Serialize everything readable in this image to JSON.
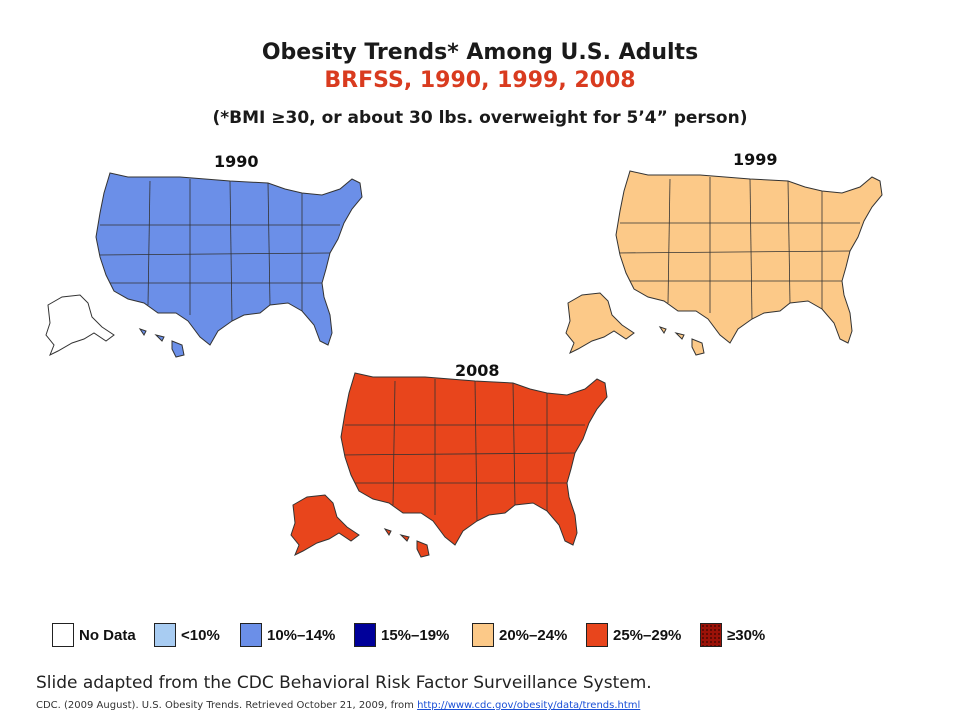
{
  "title": "Obesity Trends* Among U.S. Adults",
  "subtitle": "BRFSS, 1990, 1999, 2008",
  "note": "(*BMI ≥30, or about 30 lbs. overweight for 5’4” person)",
  "colors": {
    "nodata": "#ffffff",
    "lt10": "#a8ccf2",
    "p10_14": "#6b8fe8",
    "p15_19": "#00009a",
    "p20_24": "#fcc988",
    "p25_29": "#e8451c",
    "ge30": "#9b1208",
    "border": "#333333"
  },
  "maps": [
    {
      "year": "1990",
      "dominant": "p10_14"
    },
    {
      "year": "1999",
      "dominant": "p20_24"
    },
    {
      "year": "2008",
      "dominant": "p25_29"
    }
  ],
  "legend": [
    {
      "label": "No Data",
      "key": "nodata"
    },
    {
      "label": "<10%",
      "key": "lt10"
    },
    {
      "label": "10%–14%",
      "key": "p10_14"
    },
    {
      "label": "15%–19%",
      "key": "p15_19"
    },
    {
      "label": "20%–24%",
      "key": "p20_24"
    },
    {
      "label": "25%–29%",
      "key": "p25_29"
    },
    {
      "label": "≥30%",
      "key": "ge30"
    }
  ],
  "caption": "Slide adapted from the CDC Behavioral Risk Factor Surveillance System.",
  "source_text": "CDC. (2009 August). U.S. Obesity Trends. Retrieved October 21, 2009, from ",
  "source_link": "http://www.cdc.gov/obesity/data/trends.html"
}
